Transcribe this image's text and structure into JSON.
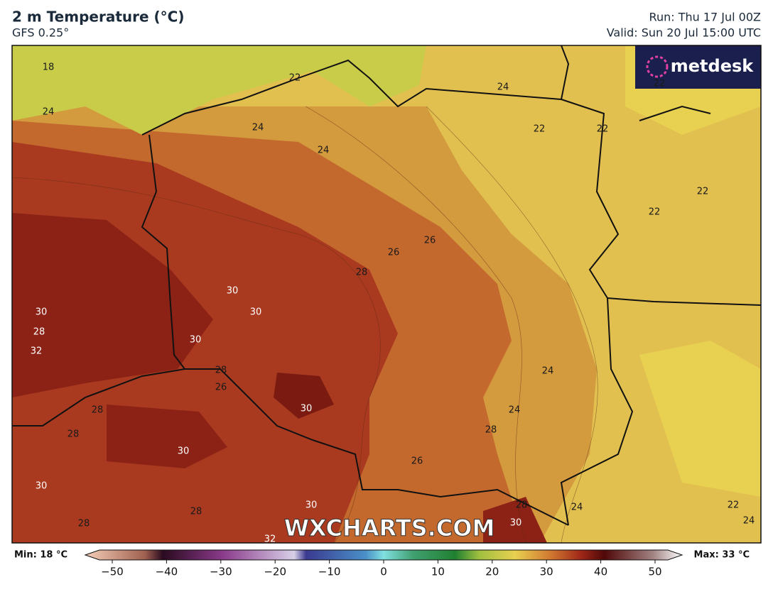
{
  "header": {
    "title": "2 m Temperature (°C)",
    "model": "GFS 0.25°",
    "run": "Run: Thu 17 Jul 00Z",
    "valid": "Valid: Sun 20 Jul 15:00 UTC"
  },
  "logo": "metdesk",
  "watermark": "WXCHARTS.COM",
  "map": {
    "contour_labels": [
      18,
      22,
      24,
      24,
      24,
      24,
      22,
      22,
      22,
      22,
      26,
      26,
      28,
      30,
      30,
      30,
      28,
      32,
      30,
      28,
      26,
      28,
      28,
      30,
      24,
      24,
      28,
      30,
      26,
      30,
      28,
      30,
      28,
      24,
      22,
      24,
      28,
      30,
      32,
      22
    ]
  },
  "colorbar": {
    "min_label": "Min: 18 °C",
    "max_label": "Max: 33 °C",
    "ticks": [
      {
        "value": -50,
        "label": "−50"
      },
      {
        "value": -40,
        "label": "−40"
      },
      {
        "value": -30,
        "label": "−30"
      },
      {
        "value": -20,
        "label": "−20"
      },
      {
        "value": -10,
        "label": "−10"
      },
      0,
      10,
      20,
      30,
      40,
      50
    ]
  }
}
